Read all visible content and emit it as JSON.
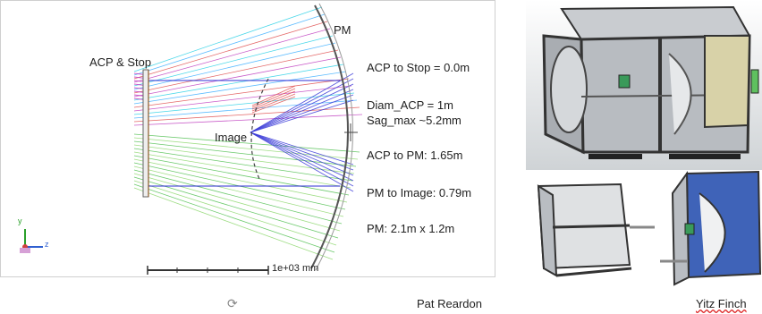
{
  "raytrace": {
    "label_acp_stop": "ACP & Stop",
    "label_pm": "PM",
    "label_image": "Image",
    "scale_label": "1e+03 mm",
    "axes": {
      "y": "y",
      "z": "z"
    },
    "specs": [
      "ACP to Stop = 0.0m",
      "Diam_ACP = 1m",
      "Sag_max ~5.2mm",
      "ACP to PM: 1.65m",
      "PM to Image: 0.79m",
      "PM: 2.1m x 1.2m"
    ],
    "ray_colors": [
      "#2bd1e6",
      "#3fb0ff",
      "#e05050",
      "#c040c0",
      "#3a3ad8",
      "#52c052",
      "#8fd870",
      "#d0a030"
    ]
  },
  "credits": {
    "left": "Pat Reardon",
    "right": "Yitz Finch"
  },
  "colors": {
    "frame": "#3c3c3c",
    "panel_blue": "#3f63b8",
    "panel_glass": "#bfc3c7",
    "panel_tan": "#d8d2a8"
  }
}
